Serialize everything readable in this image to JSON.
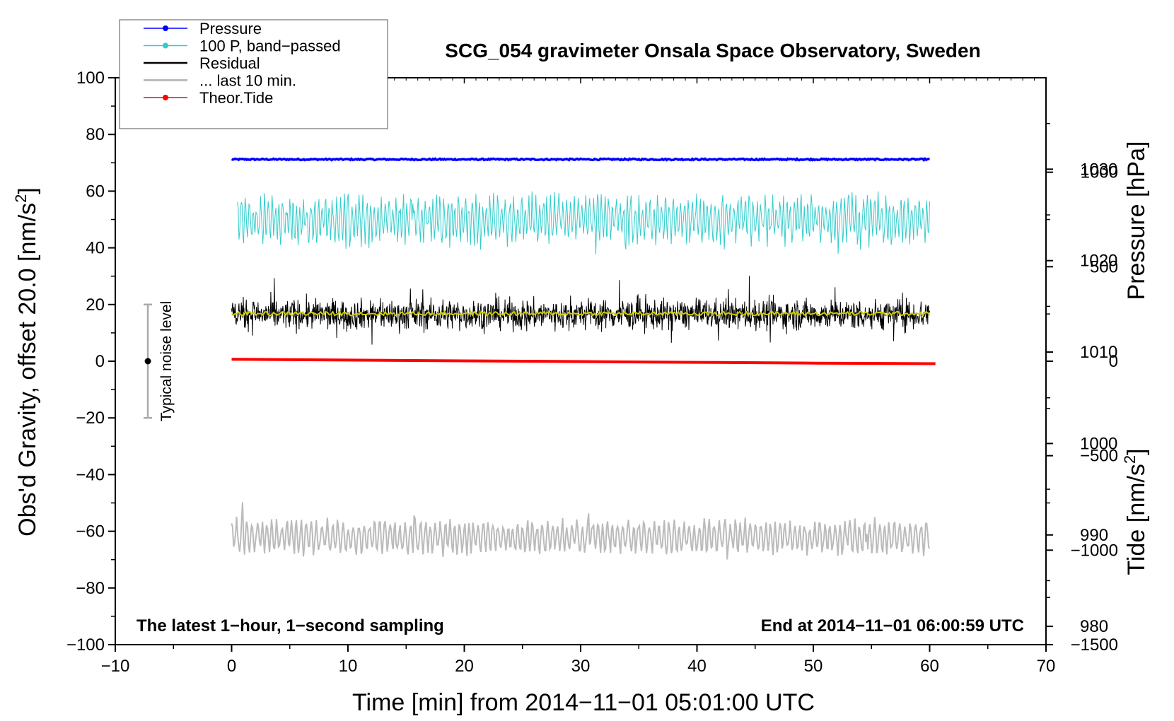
{
  "chart_data": {
    "type": "line",
    "title": "SCG_054 gravimeter Onsala Space Observatory, Sweden",
    "xlabel": "Time [min] from 2014−11−01 05:01:00 UTC",
    "ylabel_left": "Obs'd Gravity, offset 20.0 [nm/s",
    "ylabel_left_sup": "2",
    "ylabel_left_close": "]",
    "ylabel_right_pressure": "Pressure [hPa]",
    "ylabel_right_tide": "Tide [nm/s",
    "ylabel_right_tide_sup": "2",
    "ylabel_right_tide_close": "]",
    "xlim": [
      -10,
      70
    ],
    "ylim": [
      -100,
      100
    ],
    "pressure_lim": [
      978,
      1040
    ],
    "tide_lim": [
      -1500,
      1500
    ],
    "x_ticks": [
      -10,
      0,
      10,
      20,
      30,
      40,
      50,
      60,
      70
    ],
    "x_tick_labels": [
      "−10",
      "0",
      "10",
      "20",
      "30",
      "40",
      "50",
      "60",
      "70"
    ],
    "y_ticks": [
      -100,
      -80,
      -60,
      -40,
      -20,
      0,
      20,
      40,
      60,
      80,
      100
    ],
    "y_tick_labels": [
      "−100",
      "−80",
      "−60",
      "−40",
      "−20",
      "0",
      "20",
      "40",
      "60",
      "80",
      "100"
    ],
    "pressure_ticks": [
      980,
      990,
      1000,
      1010,
      1020,
      1030
    ],
    "pressure_tick_labels": [
      "980",
      "990",
      "1000",
      "1010",
      "1020",
      "1030"
    ],
    "tide_ticks": [
      -1500,
      -1000,
      -500,
      0,
      500,
      1000
    ],
    "tide_tick_labels": [
      "−1500",
      "−1000",
      "−500",
      "0",
      "500",
      "1000"
    ],
    "legend": [
      {
        "label": "Pressure",
        "color": "#0000ff",
        "marker": true
      },
      {
        "label": "100 P, band−passed",
        "color": "#33cccc",
        "marker": true
      },
      {
        "label": "Residual",
        "color": "#000000",
        "marker": false
      },
      {
        "label": "... last 10 min.",
        "color": "#bbbbbb",
        "marker": false
      },
      {
        "label": "Theor.Tide",
        "color": "#ff0000",
        "marker": true
      }
    ],
    "series": [
      {
        "name": "Pressure",
        "color": "#0000ff",
        "axis": "left",
        "x_range": [
          0,
          60
        ],
        "level": 71.2,
        "noise_amplitude": 0.5
      },
      {
        "name": "100 P, band−passed",
        "color": "#33cccc",
        "axis": "left",
        "x_range": [
          0.5,
          60
        ],
        "level": 50,
        "min": 28,
        "max": 64
      },
      {
        "name": "Residual",
        "color": "#000000",
        "axis": "left",
        "x_range": [
          0,
          60
        ],
        "level": 16.5,
        "min": 2,
        "max": 31
      },
      {
        "name": "Residual smoothed",
        "color": "#cccc00",
        "axis": "left",
        "x_range": [
          0,
          60
        ],
        "level": 16.8
      },
      {
        "name": "... last 10 min.",
        "color": "#bbbbbb",
        "axis": "left",
        "x_range": [
          0,
          60
        ],
        "level": -62,
        "min": -74,
        "max": -48
      },
      {
        "name": "Theor.Tide",
        "color": "#ff0000",
        "axis": "tide",
        "x": [
          0,
          10,
          20,
          30,
          40,
          50,
          60.5
        ],
        "values": [
          10,
          6,
          2,
          -2,
          -6,
          -10,
          -13
        ]
      }
    ],
    "noise_indicator": {
      "label": "Typical noise level",
      "x": -7.2,
      "center": 0,
      "range": [
        -20,
        20
      ]
    },
    "annotations": {
      "left": "The latest 1−hour, 1−second sampling",
      "right": "End at 2014−11−01 06:00:59 UTC"
    }
  }
}
